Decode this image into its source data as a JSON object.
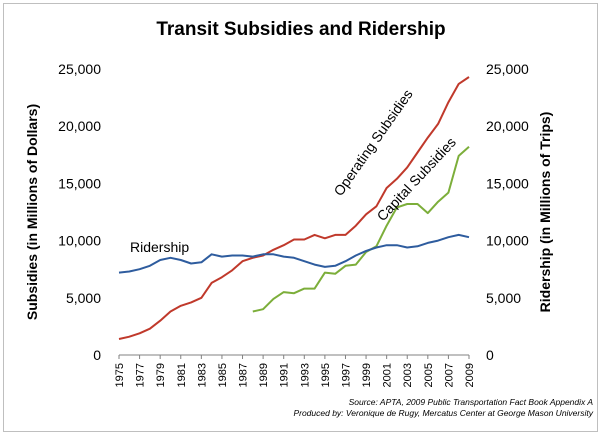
{
  "chart_data": {
    "type": "line",
    "title": "Transit Subsidies and Ridership",
    "ylabel_left": "Subsidies (in Millions of Dollars)",
    "ylabel_right": "Ridership (in Millions of Trips)",
    "ylim_left": [
      0,
      25000
    ],
    "ylim_right": [
      0,
      25000
    ],
    "yticks": [
      "0",
      "5,000",
      "10,000",
      "15,000",
      "20,000",
      "25,000"
    ],
    "xlim": [
      1975,
      2009
    ],
    "xticks": [
      "1975",
      "1977",
      "1979",
      "1981",
      "1983",
      "1985",
      "1987",
      "1989",
      "1991",
      "1993",
      "1995",
      "1997",
      "1999",
      "2001",
      "2003",
      "2005",
      "2007",
      "2009"
    ],
    "grid": false,
    "series": [
      {
        "name": "Operating Subsidies",
        "axis": "left",
        "color": "#c0392b",
        "x": [
          1975,
          1976,
          1977,
          1978,
          1979,
          1980,
          1981,
          1982,
          1983,
          1984,
          1985,
          1986,
          1987,
          1988,
          1989,
          1990,
          1991,
          1992,
          1993,
          1994,
          1995,
          1996,
          1997,
          1998,
          1999,
          2000,
          2001,
          2002,
          2003,
          2004,
          2005,
          2006,
          2007,
          2008,
          2009
        ],
        "values": [
          1400,
          1600,
          1900,
          2300,
          3000,
          3800,
          4300,
          4600,
          5000,
          6300,
          6800,
          7400,
          8200,
          8500,
          8700,
          9200,
          9600,
          10100,
          10100,
          10500,
          10200,
          10500,
          10500,
          11300,
          12300,
          13000,
          14600,
          15400,
          16400,
          17700,
          19000,
          20200,
          22100,
          23700,
          24300
        ]
      },
      {
        "name": "Capital Subsidies",
        "axis": "left",
        "color": "#7cae3a",
        "x": [
          1988,
          1989,
          1990,
          1991,
          1992,
          1993,
          1994,
          1995,
          1996,
          1997,
          1998,
          1999,
          2000,
          2001,
          2002,
          2003,
          2004,
          2005,
          2006,
          2007,
          2008,
          2009
        ],
        "values": [
          3800,
          4000,
          4900,
          5500,
          5400,
          5800,
          5800,
          7200,
          7100,
          7800,
          7900,
          9000,
          9500,
          11300,
          12900,
          13200,
          13200,
          12400,
          13400,
          14200,
          17400,
          18200
        ]
      },
      {
        "name": "Ridership",
        "axis": "right",
        "color": "#2e5c9e",
        "x": [
          1975,
          1976,
          1977,
          1978,
          1979,
          1980,
          1981,
          1982,
          1983,
          1984,
          1985,
          1986,
          1987,
          1988,
          1989,
          1990,
          1991,
          1992,
          1993,
          1994,
          1995,
          1996,
          1997,
          1998,
          1999,
          2000,
          2001,
          2002,
          2003,
          2004,
          2005,
          2006,
          2007,
          2008,
          2009
        ],
        "values": [
          7200,
          7300,
          7500,
          7800,
          8300,
          8500,
          8300,
          8000,
          8100,
          8800,
          8600,
          8700,
          8700,
          8600,
          8800,
          8800,
          8600,
          8500,
          8200,
          7900,
          7700,
          7800,
          8200,
          8700,
          9100,
          9400,
          9600,
          9600,
          9400,
          9500,
          9800,
          10000,
          10300,
          10500,
          10300
        ]
      }
    ],
    "annotations": {
      "operating": "Operating Subsidies",
      "capital": "Capital Subsidies",
      "ridership": "Ridership"
    },
    "source_line1": "Source: APTA, 2009 Public Transportation Fact Book Appendix A",
    "source_line2": "Produced by: Veronique de Rugy, Mercatus Center at George Mason University"
  }
}
